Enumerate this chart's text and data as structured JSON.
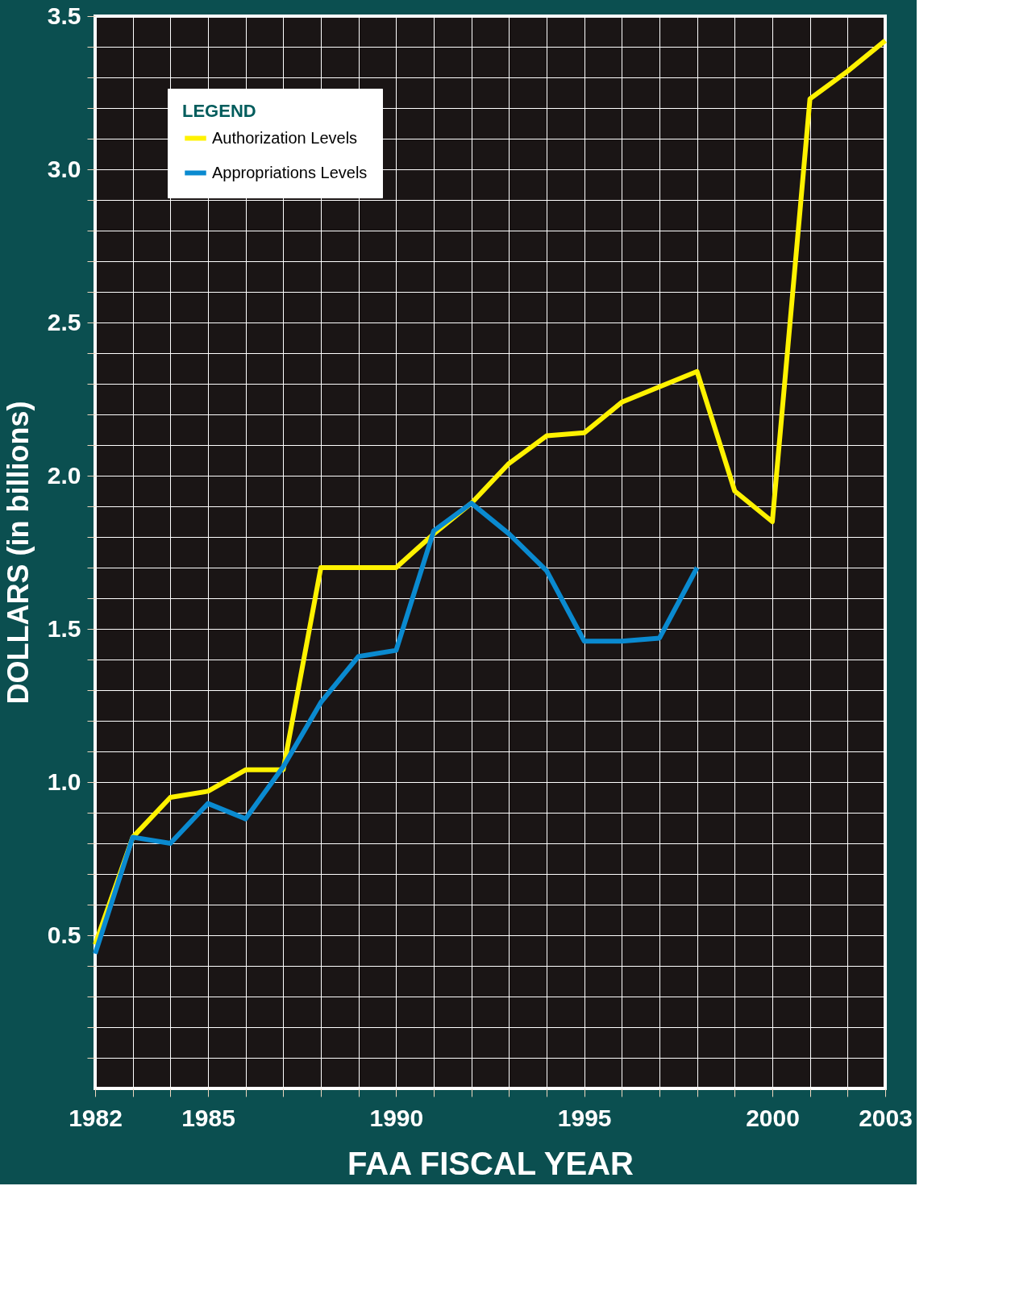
{
  "chart_data": {
    "type": "line",
    "xlabel": "FAA FISCAL YEAR",
    "ylabel": "DOLLARS (in billions)",
    "legend_title": "LEGEND",
    "legend": "top left",
    "grid": true,
    "marker": "none",
    "line_style": "solid",
    "x": [
      1982,
      1983,
      1984,
      1985,
      1986,
      1987,
      1988,
      1989,
      1990,
      1991,
      1992,
      1993,
      1994,
      1995,
      1996,
      1997,
      1998,
      1999,
      2000,
      2001,
      2002,
      2003
    ],
    "xlim": [
      1982,
      2003
    ],
    "ylim": [
      0,
      3.5
    ],
    "xticks": [
      1982,
      {
        "value": 1983,
        "label": null
      },
      {
        "value": 1984,
        "label": null
      },
      1985,
      {
        "value": 1986,
        "label": null
      },
      {
        "value": 1987,
        "label": null
      },
      {
        "value": 1988,
        "label": null
      },
      {
        "value": 1989,
        "label": null
      },
      1990,
      {
        "value": 1991,
        "label": null
      },
      {
        "value": 1992,
        "label": null
      },
      {
        "value": 1993,
        "label": null
      },
      {
        "value": 1994,
        "label": null
      },
      1995,
      {
        "value": 1996,
        "label": null
      },
      {
        "value": 1997,
        "label": null
      },
      {
        "value": 1998,
        "label": null
      },
      {
        "value": 1999,
        "label": null
      },
      2000,
      {
        "value": 2001,
        "label": null
      },
      {
        "value": 2002,
        "label": null
      },
      2003
    ],
    "yticks": [
      {
        "value": 0.1,
        "label": null
      },
      {
        "value": 0.2,
        "label": null
      },
      {
        "value": 0.3,
        "label": null
      },
      {
        "value": 0.4,
        "label": null
      },
      0.5,
      {
        "value": 0.6,
        "label": null
      },
      {
        "value": 0.7,
        "label": null
      },
      {
        "value": 0.8,
        "label": null
      },
      {
        "value": 0.9,
        "label": null
      },
      {
        "value": 1,
        "label": "1.0"
      },
      {
        "value": 1.1,
        "label": null
      },
      {
        "value": 1.2,
        "label": null
      },
      {
        "value": 1.3,
        "label": null
      },
      {
        "value": 1.4,
        "label": null
      },
      1.5,
      {
        "value": 1.6,
        "label": null
      },
      {
        "value": 1.7,
        "label": null
      },
      {
        "value": 1.8,
        "label": null
      },
      {
        "value": 1.9,
        "label": null
      },
      {
        "value": 2,
        "label": "2.0"
      },
      {
        "value": 2.1,
        "label": null
      },
      {
        "value": 2.2,
        "label": null
      },
      {
        "value": 2.3,
        "label": null
      },
      {
        "value": 2.4,
        "label": null
      },
      2.5,
      {
        "value": 2.6,
        "label": null
      },
      {
        "value": 2.7,
        "label": null
      },
      {
        "value": 2.8,
        "label": null
      },
      {
        "value": 2.9,
        "label": null
      },
      {
        "value": 3,
        "label": "3.0"
      },
      {
        "value": 3.1,
        "label": null
      },
      {
        "value": 3.2,
        "label": null
      },
      {
        "value": 3.3,
        "label": null
      },
      {
        "value": 3.4,
        "label": null
      },
      3.5
    ],
    "series": [
      {
        "name": "Authorization Levels",
        "color": "#fff200",
        "values": [
          0.47,
          0.82,
          0.95,
          0.97,
          1.04,
          1.04,
          1.7,
          1.7,
          1.7,
          1.81,
          1.91,
          2.04,
          2.13,
          2.14,
          2.24,
          2.29,
          2.34,
          1.95,
          1.85,
          3.23,
          3.32,
          3.42
        ]
      },
      {
        "name": "Appropriations Levels",
        "color": "#0a8ad0",
        "values": [
          0.44,
          0.82,
          0.8,
          0.93,
          0.88,
          1.05,
          1.26,
          1.41,
          1.43,
          1.82,
          1.91,
          1.81,
          1.69,
          1.46,
          1.46,
          1.47,
          1.7,
          null,
          null,
          null,
          null,
          null
        ]
      }
    ]
  }
}
